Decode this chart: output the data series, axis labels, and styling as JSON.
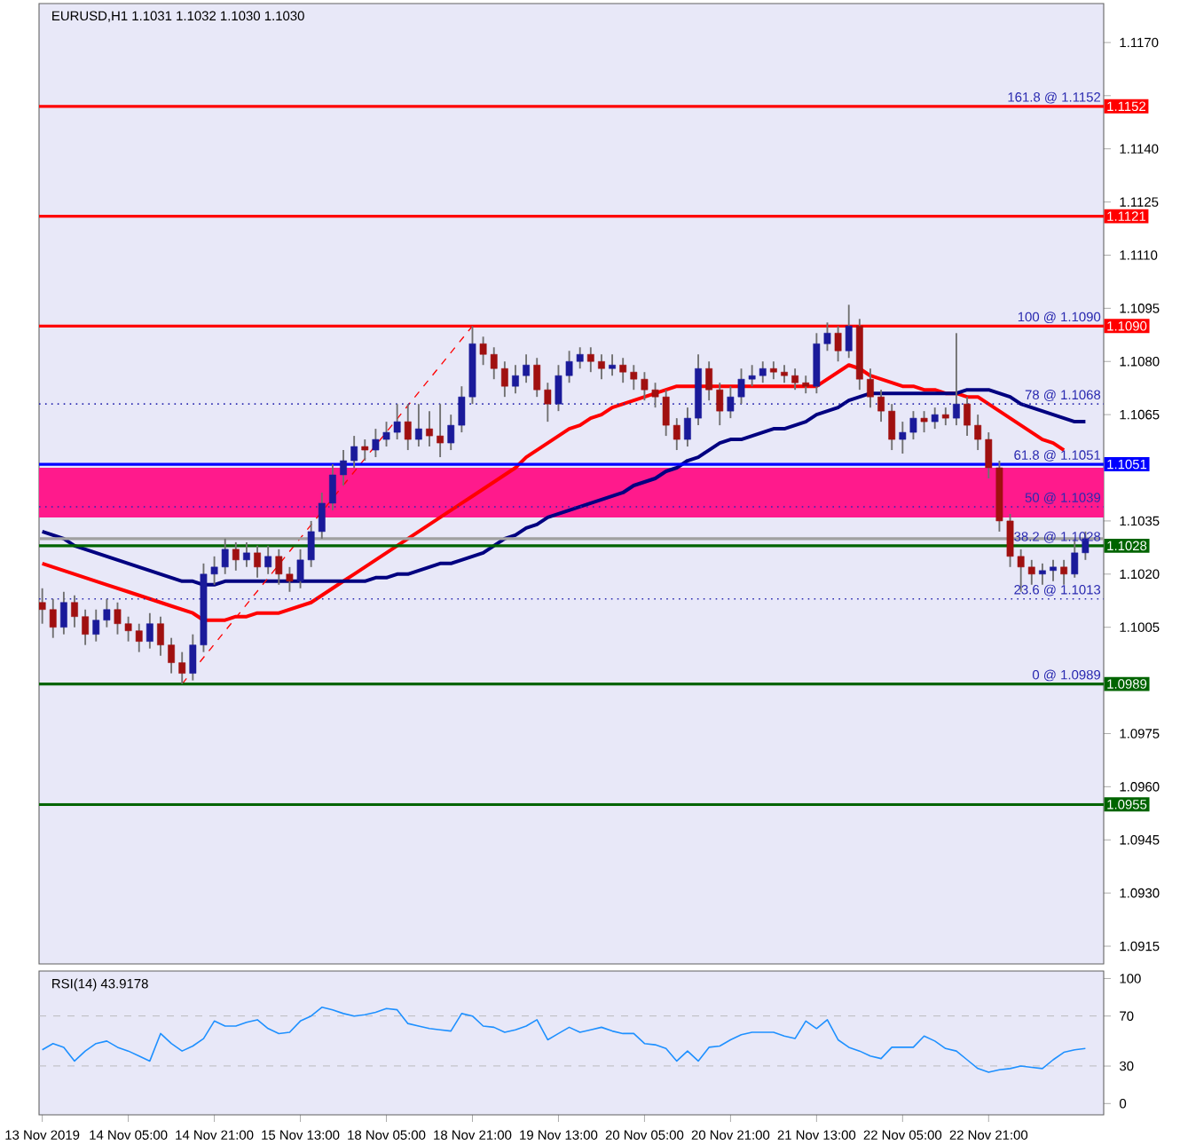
{
  "chart_data": [
    {
      "type": "candlestick",
      "title": "EURUSD,H1 1.1031 1.1032 1.1030 1.1030",
      "categories": [
        null,
        null,
        null,
        null,
        null,
        null,
        null,
        null,
        null,
        null,
        null,
        null,
        null,
        null,
        null,
        null,
        null,
        null,
        null,
        null,
        null,
        null,
        null,
        null,
        null,
        null,
        null,
        null,
        null,
        null,
        null,
        null,
        null,
        null,
        null,
        null,
        null,
        null,
        null,
        null,
        null,
        null,
        null,
        null,
        null,
        null,
        null,
        null,
        null,
        null,
        null,
        null,
        null,
        null,
        null,
        null,
        null,
        null,
        null,
        null,
        null,
        null,
        null,
        null,
        null,
        null,
        null,
        null,
        null,
        null,
        null,
        null,
        null,
        null,
        null,
        null,
        null,
        null,
        null,
        null,
        null,
        null,
        null,
        null,
        null,
        null,
        null,
        null,
        null,
        null,
        null,
        null,
        null,
        null,
        null,
        null,
        null,
        null
      ],
      "ohlc": [
        [
          1.1012,
          1.1016,
          1.1006,
          1.101
        ],
        [
          1.101,
          1.1013,
          1.1002,
          1.1005
        ],
        [
          1.1005,
          1.1015,
          1.1003,
          1.1012
        ],
        [
          1.1012,
          1.1014,
          1.1005,
          1.1008
        ],
        [
          1.1008,
          1.101,
          1.1,
          1.1003
        ],
        [
          1.1003,
          1.101,
          1.1001,
          1.1007
        ],
        [
          1.1007,
          1.1013,
          1.1005,
          1.101
        ],
        [
          1.101,
          1.1012,
          1.1003,
          1.1006
        ],
        [
          1.1006,
          1.1008,
          1.1001,
          1.1004
        ],
        [
          1.1004,
          1.1006,
          1.0998,
          1.1001
        ],
        [
          1.1001,
          1.1009,
          1.0999,
          1.1006
        ],
        [
          1.1006,
          1.1008,
          1.0997,
          1.1
        ],
        [
          1.1,
          1.1002,
          1.0992,
          1.0995
        ],
        [
          1.0995,
          1.0998,
          1.0989,
          1.0992
        ],
        [
          1.0992,
          1.1003,
          1.099,
          1.1
        ],
        [
          1.1,
          1.1023,
          1.0998,
          1.102
        ],
        [
          1.102,
          1.1025,
          1.1017,
          1.1022
        ],
        [
          1.1022,
          1.103,
          1.102,
          1.1027
        ],
        [
          1.1027,
          1.1029,
          1.1021,
          1.1024
        ],
        [
          1.1024,
          1.1029,
          1.1022,
          1.1026
        ],
        [
          1.1026,
          1.1028,
          1.1019,
          1.1022
        ],
        [
          1.1022,
          1.1028,
          1.102,
          1.1025
        ],
        [
          1.1025,
          1.1027,
          1.1017,
          1.102
        ],
        [
          1.102,
          1.1022,
          1.1015,
          1.1018
        ],
        [
          1.1018,
          1.1027,
          1.1016,
          1.1024
        ],
        [
          1.1024,
          1.1035,
          1.1022,
          1.1032
        ],
        [
          1.1032,
          1.1043,
          1.103,
          1.104
        ],
        [
          1.104,
          1.1051,
          1.1038,
          1.1048
        ],
        [
          1.1048,
          1.1055,
          1.1045,
          1.1052
        ],
        [
          1.1052,
          1.1059,
          1.105,
          1.1056
        ],
        [
          1.1056,
          1.1058,
          1.1052,
          1.1055
        ],
        [
          1.1055,
          1.1061,
          1.1053,
          1.1058
        ],
        [
          1.1058,
          1.1063,
          1.1056,
          1.106
        ],
        [
          1.106,
          1.1068,
          1.1058,
          1.1063
        ],
        [
          1.1063,
          1.1068,
          1.1055,
          1.1058
        ],
        [
          1.1058,
          1.1068,
          1.1056,
          1.1061
        ],
        [
          1.1061,
          1.1066,
          1.1056,
          1.1059
        ],
        [
          1.1059,
          1.1068,
          1.1053,
          1.1057
        ],
        [
          1.1057,
          1.1065,
          1.1055,
          1.1062
        ],
        [
          1.1062,
          1.1073,
          1.106,
          1.107
        ],
        [
          1.107,
          1.109,
          1.1068,
          1.1085
        ],
        [
          1.1085,
          1.1087,
          1.1079,
          1.1082
        ],
        [
          1.1082,
          1.1084,
          1.1075,
          1.1078
        ],
        [
          1.1078,
          1.108,
          1.107,
          1.1073
        ],
        [
          1.1073,
          1.1079,
          1.1071,
          1.1076
        ],
        [
          1.1076,
          1.1082,
          1.1074,
          1.1079
        ],
        [
          1.1079,
          1.1081,
          1.107,
          1.1072
        ],
        [
          1.1072,
          1.1074,
          1.1063,
          1.1068
        ],
        [
          1.1068,
          1.1079,
          1.1066,
          1.1076
        ],
        [
          1.1076,
          1.1083,
          1.1074,
          1.108
        ],
        [
          1.108,
          1.1084,
          1.1078,
          1.1082
        ],
        [
          1.1082,
          1.1084,
          1.1077,
          1.108
        ],
        [
          1.108,
          1.1082,
          1.1075,
          1.1078
        ],
        [
          1.1078,
          1.1082,
          1.1076,
          1.1079
        ],
        [
          1.1079,
          1.1081,
          1.1074,
          1.1077
        ],
        [
          1.1077,
          1.1079,
          1.1072,
          1.1075
        ],
        [
          1.1075,
          1.1077,
          1.1069,
          1.1072
        ],
        [
          1.1072,
          1.1074,
          1.1067,
          1.107
        ],
        [
          1.107,
          1.1072,
          1.1059,
          1.1062
        ],
        [
          1.1062,
          1.1064,
          1.1055,
          1.1058
        ],
        [
          1.1058,
          1.1067,
          1.1056,
          1.1064
        ],
        [
          1.1064,
          1.1082,
          1.1062,
          1.1078
        ],
        [
          1.1078,
          1.108,
          1.1069,
          1.1072
        ],
        [
          1.1072,
          1.1074,
          1.1062,
          1.1066
        ],
        [
          1.1066,
          1.1073,
          1.1064,
          1.107
        ],
        [
          1.107,
          1.1078,
          1.1068,
          1.1075
        ],
        [
          1.1075,
          1.1079,
          1.1073,
          1.1076
        ],
        [
          1.1076,
          1.108,
          1.1074,
          1.1078
        ],
        [
          1.1078,
          1.108,
          1.1075,
          1.1077
        ],
        [
          1.1077,
          1.1079,
          1.1074,
          1.1076
        ],
        [
          1.1076,
          1.1078,
          1.1072,
          1.1074
        ],
        [
          1.1074,
          1.1076,
          1.1071,
          1.1073
        ],
        [
          1.1073,
          1.1088,
          1.1071,
          1.1085
        ],
        [
          1.1085,
          1.1091,
          1.1083,
          1.1088
        ],
        [
          1.1088,
          1.109,
          1.108,
          1.1083
        ],
        [
          1.1083,
          1.1096,
          1.1081,
          1.109
        ],
        [
          1.109,
          1.1092,
          1.1072,
          1.1075
        ],
        [
          1.1075,
          1.1078,
          1.1067,
          1.107
        ],
        [
          1.107,
          1.1072,
          1.1063,
          1.1066
        ],
        [
          1.1066,
          1.1068,
          1.1055,
          1.1058
        ],
        [
          1.1058,
          1.1063,
          1.1054,
          1.106
        ],
        [
          1.106,
          1.1066,
          1.1058,
          1.1064
        ],
        [
          1.1064,
          1.1066,
          1.106,
          1.1063
        ],
        [
          1.1063,
          1.1067,
          1.1061,
          1.1065
        ],
        [
          1.1065,
          1.1067,
          1.1062,
          1.1064
        ],
        [
          1.1064,
          1.1088,
          1.1062,
          1.1068
        ],
        [
          1.1068,
          1.107,
          1.1059,
          1.1062
        ],
        [
          1.1062,
          1.1065,
          1.1055,
          1.1058
        ],
        [
          1.1058,
          1.106,
          1.1047,
          1.105
        ],
        [
          1.105,
          1.1052,
          1.1032,
          1.1035
        ],
        [
          1.1035,
          1.1037,
          1.1022,
          1.1025
        ],
        [
          1.1025,
          1.1027,
          1.1015,
          1.1022
        ],
        [
          1.1022,
          1.1024,
          1.1017,
          1.102
        ],
        [
          1.102,
          1.1023,
          1.1017,
          1.1021
        ],
        [
          1.1021,
          1.1024,
          1.1018,
          1.1022
        ],
        [
          1.1022,
          1.1024,
          1.1017,
          1.102
        ],
        [
          1.102,
          1.103,
          1.1019,
          1.1026
        ],
        [
          1.1026,
          1.1032,
          1.1024,
          1.103
        ]
      ],
      "ylim": [
        1.091,
        1.1181
      ],
      "yticks": [
        1.0915,
        {
          "value": 1.093,
          "label": "1.0930"
        },
        1.0945,
        {
          "value": 1.096,
          "label": "1.0960"
        },
        1.0975,
        {
          "value": 1.099,
          "label": null
        },
        1.1005,
        {
          "value": 1.102,
          "label": "1.1020"
        },
        1.1035,
        {
          "value": 1.105,
          "label": null
        },
        1.1065,
        {
          "value": 1.108,
          "label": "1.1080"
        },
        1.1095,
        {
          "value": 1.111,
          "label": "1.1110"
        },
        1.1125,
        {
          "value": 1.114,
          "label": "1.1140"
        },
        {
          "value": 1.1155,
          "label": null
        },
        {
          "value": 1.117,
          "label": "1.1170"
        }
      ],
      "tick_labels": "y",
      "series": [
        {
          "type": "line",
          "color": "#ff0000",
          "values": [
            1.1023,
            1.1022,
            1.1021,
            1.102,
            1.1019,
            1.1018,
            1.1017,
            1.1016,
            1.1015,
            1.1014,
            1.1013,
            1.1012,
            1.1011,
            1.101,
            1.1009,
            1.1007,
            1.1007,
            1.1007,
            1.1008,
            1.1008,
            1.1009,
            1.1009,
            1.1009,
            1.101,
            1.1011,
            1.1012,
            1.1014,
            1.1016,
            1.1018,
            1.102,
            1.1022,
            1.1024,
            1.1026,
            1.1028,
            1.103,
            1.1032,
            1.1034,
            1.1036,
            1.1038,
            1.104,
            1.1042,
            1.1044,
            1.1046,
            1.1048,
            1.105,
            1.1053,
            1.1055,
            1.1057,
            1.1059,
            1.1061,
            1.1062,
            1.1064,
            1.1065,
            1.1067,
            1.1068,
            1.1069,
            1.107,
            1.1071,
            1.1072,
            1.1073,
            1.1073,
            1.1073,
            1.1073,
            1.1073,
            1.1073,
            1.1073,
            1.1073,
            1.1073,
            1.1073,
            1.1073,
            1.1073,
            1.1073,
            1.1073,
            1.1075,
            1.1077,
            1.1079,
            1.1078,
            1.1076,
            1.1075,
            1.1074,
            1.1073,
            1.1073,
            1.1072,
            1.1072,
            1.1071,
            1.1071,
            1.107,
            1.107,
            1.1068,
            1.1066,
            1.1064,
            1.1062,
            1.106,
            1.1058,
            1.1057,
            1.1055,
            null,
            null
          ]
        },
        {
          "type": "line",
          "color": "#000080",
          "values": [
            1.1032,
            1.1031,
            1.103,
            1.1028,
            1.1027,
            1.1026,
            1.1025,
            1.1024,
            1.1023,
            1.1022,
            1.1021,
            1.102,
            1.1019,
            1.1018,
            1.1018,
            1.1017,
            1.1017,
            1.1018,
            1.1018,
            1.1018,
            1.1018,
            1.1018,
            1.1018,
            1.1018,
            1.1018,
            1.1018,
            1.1018,
            1.1018,
            1.1018,
            1.1018,
            1.1018,
            1.1019,
            1.1019,
            1.102,
            1.102,
            1.1021,
            1.1022,
            1.1023,
            1.1023,
            1.1024,
            1.1025,
            1.1026,
            1.1028,
            1.103,
            1.1031,
            1.1033,
            1.1034,
            1.1036,
            1.1037,
            1.1038,
            1.1039,
            1.104,
            1.1041,
            1.1042,
            1.1043,
            1.1045,
            1.1046,
            1.1047,
            1.1049,
            1.105,
            1.1052,
            1.1053,
            1.1055,
            1.1057,
            1.1058,
            1.1058,
            1.1059,
            1.106,
            1.1061,
            1.1061,
            1.1062,
            1.1063,
            1.1065,
            1.1066,
            1.1067,
            1.1069,
            1.107,
            1.1071,
            1.1071,
            1.1071,
            1.1071,
            1.1071,
            1.1071,
            1.1071,
            1.1071,
            1.1071,
            1.1072,
            1.1072,
            1.1072,
            1.1071,
            1.107,
            1.1068,
            1.1067,
            1.1066,
            1.1065,
            1.1064,
            1.1063,
            1.1063
          ]
        },
        {
          "type": "line",
          "color": "#ff0000",
          "line_style": "dashed",
          "values": [
            null,
            null,
            null,
            null,
            null,
            null,
            null,
            null,
            null,
            null,
            null,
            null,
            null,
            1.0989,
            null,
            null,
            null,
            null,
            null,
            null,
            null,
            null,
            null,
            null,
            null,
            null,
            null,
            null,
            null,
            null,
            null,
            null,
            null,
            null,
            null,
            null,
            null,
            null,
            null,
            null,
            1.109,
            null,
            null,
            null,
            null,
            null,
            null,
            null,
            null,
            null,
            null,
            null,
            null,
            null,
            null,
            null,
            null,
            null,
            null,
            null,
            null,
            null,
            null,
            null,
            null,
            null,
            null,
            null,
            null,
            null,
            null,
            null,
            null,
            null,
            null,
            null,
            null,
            null,
            null,
            null,
            null,
            null,
            null,
            null,
            null,
            null,
            null,
            null,
            null,
            null,
            null,
            null,
            null,
            null,
            null,
            null,
            null,
            null
          ]
        }
      ],
      "bands": [
        {
          "axis": "y",
          "from": 1.1036,
          "to": 1.105,
          "color": "#ff1a8c"
        }
      ],
      "ref_lines": [
        {
          "axis": "y",
          "value": 1.1152,
          "color": "#ff0000",
          "label": "1.1152"
        },
        {
          "axis": "y",
          "value": 1.1121,
          "color": "#ff0000",
          "label": "1.1121"
        },
        {
          "axis": "y",
          "value": 1.109,
          "color": "#ff0000",
          "label": "1.1090"
        },
        {
          "axis": "y",
          "value": 1.1068,
          "color": "#2a2ab0",
          "line_style": "dotted",
          "label": "78 @ 1.1068"
        },
        {
          "axis": "y",
          "value": 1.1051,
          "color": "#0000ff",
          "label": "1.1051"
        },
        {
          "axis": "y",
          "value": 1.1039,
          "color": "#2a2ab0",
          "line_style": "dotted",
          "label": "50 @ 1.1039"
        },
        {
          "axis": "y",
          "value": 1.103,
          "color": "#a0a0a0"
        },
        {
          "axis": "y",
          "value": 1.1028,
          "color": "#006400",
          "label": "1.1028"
        },
        {
          "axis": "y",
          "value": 1.1013,
          "color": "#2a2ab0",
          "line_style": "dotted",
          "label": "23.6 @ 1.1013"
        },
        {
          "axis": "y",
          "value": 1.0989,
          "color": "#006400",
          "label": "1.0989"
        },
        {
          "axis": "y",
          "value": 1.0955,
          "color": "#006400",
          "label": "1.0955"
        }
      ],
      "annotations": [
        {
          "text": "161.8 @ 1.1152",
          "y": 1.1152
        },
        {
          "text": "100 @ 1.1090",
          "y": 1.109
        },
        {
          "text": "61.8 @ 1.1051",
          "y": 1.1051
        },
        {
          "text": "38.2 @ 1.1028",
          "y": 1.1028
        },
        {
          "text": "0 @ 1.0989",
          "y": 1.0989
        }
      ]
    },
    {
      "type": "line",
      "title": "RSI(14) 43.9178",
      "color": "#1e90ff",
      "categories": [
        "13 Nov 2019",
        null,
        null,
        null,
        null,
        null,
        null,
        null,
        "14 Nov 05:00",
        null,
        null,
        null,
        null,
        null,
        null,
        null,
        "14 Nov 21:00",
        null,
        null,
        null,
        null,
        null,
        null,
        null,
        "15 Nov 13:00",
        null,
        null,
        null,
        null,
        null,
        null,
        null,
        "18 Nov 05:00",
        null,
        null,
        null,
        null,
        null,
        null,
        null,
        "18 Nov 21:00",
        null,
        null,
        null,
        null,
        null,
        null,
        null,
        "19 Nov 13:00",
        null,
        null,
        null,
        null,
        null,
        null,
        null,
        "20 Nov 05:00",
        null,
        null,
        null,
        null,
        null,
        null,
        null,
        "20 Nov 21:00",
        null,
        null,
        null,
        null,
        null,
        null,
        null,
        "21 Nov 13:00",
        null,
        null,
        null,
        null,
        null,
        null,
        null,
        "22 Nov 05:00",
        null,
        null,
        null,
        null,
        null,
        null,
        null,
        "22 Nov 21:00",
        null,
        null,
        null,
        null,
        null,
        null,
        null,
        null,
        null
      ],
      "values": [
        43,
        48,
        45,
        34,
        42,
        48,
        50,
        45,
        42,
        38,
        34,
        56,
        48,
        42,
        46,
        52,
        66,
        62,
        62,
        65,
        67,
        60,
        56,
        57,
        66,
        70,
        77,
        75,
        72,
        70,
        71,
        73,
        76,
        75,
        64,
        62,
        60,
        59,
        58,
        72,
        70,
        62,
        61,
        57,
        59,
        62,
        67,
        51,
        56,
        61,
        57,
        59,
        61,
        58,
        56,
        56,
        48,
        47,
        44,
        34,
        42,
        34,
        45,
        46,
        51,
        55,
        57,
        57,
        57,
        54,
        52,
        66,
        60,
        67,
        51,
        45,
        42,
        38,
        36,
        45,
        45,
        45,
        54,
        50,
        44,
        42,
        35,
        28,
        25,
        27,
        28,
        30,
        29,
        28,
        35,
        41,
        43,
        44
      ],
      "ylim": [
        -9,
        106
      ],
      "yticks": [
        0,
        30,
        70,
        100
      ],
      "ref_lines": [
        {
          "axis": "y",
          "value": 30,
          "color": "#b4b4b4",
          "line_style": "dashed"
        },
        {
          "axis": "y",
          "value": 70,
          "color": "#b4b4b4",
          "line_style": "dashed"
        }
      ]
    }
  ]
}
